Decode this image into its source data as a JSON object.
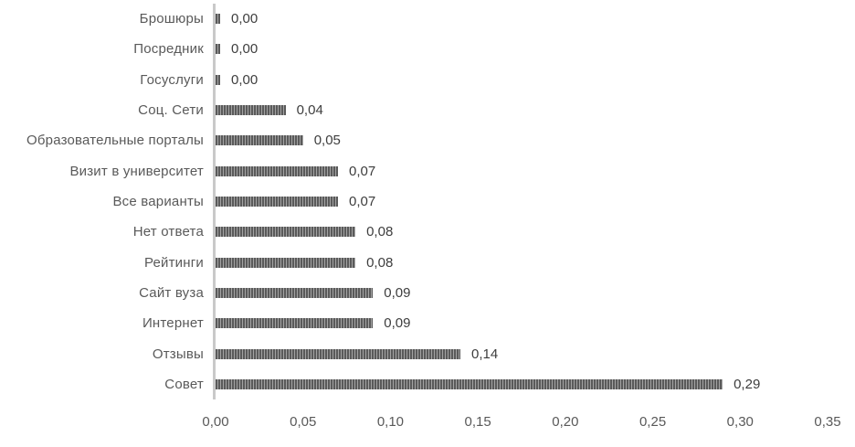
{
  "chart_data": {
    "type": "bar",
    "orientation": "horizontal",
    "title": "",
    "xlabel": "",
    "ylabel": "",
    "grid": false,
    "legend": "none",
    "categories": [
      "Брошюры",
      "Посредник",
      "Госуслуги",
      "Соц. Сети",
      "Образовательные порталы",
      "Визит в университет",
      "Все варианты",
      "Нет ответа",
      "Рейтинги",
      "Сайт вуза",
      "Интернет",
      "Отзывы",
      "Совет"
    ],
    "values": [
      0.0,
      0.0,
      0.0,
      0.04,
      0.05,
      0.07,
      0.07,
      0.08,
      0.08,
      0.09,
      0.09,
      0.14,
      0.29
    ],
    "value_labels": [
      "0,00",
      "0,00",
      "0,00",
      "0,04",
      "0,05",
      "0,07",
      "0,07",
      "0,08",
      "0,08",
      "0,09",
      "0,09",
      "0,14",
      "0,29"
    ],
    "xlim": [
      0,
      0.35
    ],
    "x_tick_values": [
      0.0,
      0.05,
      0.1,
      0.15,
      0.2,
      0.25,
      0.3,
      0.35
    ],
    "x_tick_labels": [
      "0,00",
      "0,05",
      "0,10",
      "0,15",
      "0,20",
      "0,25",
      "0,30",
      "0,35"
    ],
    "colors": {
      "bar_stripe_dark": "#5a5a5a",
      "bar_stripe_light": "#a3a3a3",
      "axis_line": "#c9c9c9",
      "category_label": "#595959",
      "value_label": "#3d3d3d",
      "tick_label": "#595959",
      "background": "#ffffff"
    }
  }
}
